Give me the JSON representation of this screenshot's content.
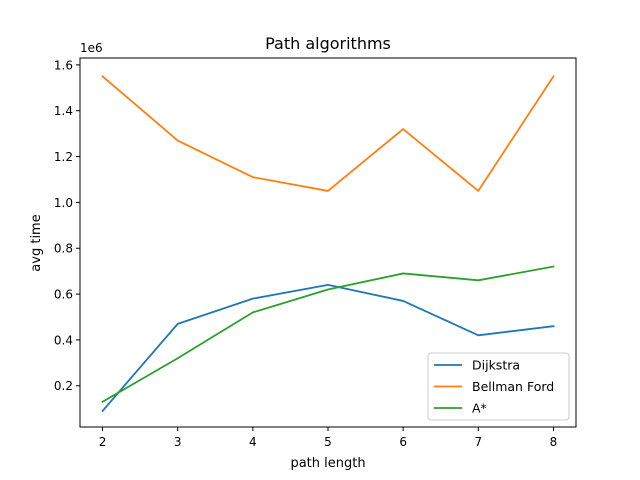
{
  "chart_data": {
    "type": "line",
    "title": "Path algorithms",
    "xlabel": "path length",
    "ylabel": "avg time",
    "y_offset_label": "1e6",
    "x": [
      2,
      3,
      4,
      5,
      6,
      7,
      8
    ],
    "xlim": [
      1.7,
      8.3
    ],
    "ylim": [
      0.02,
      1.63
    ],
    "x_ticks": [
      2,
      3,
      4,
      5,
      6,
      7,
      8
    ],
    "y_ticks": [
      0.2,
      0.4,
      0.6,
      0.8,
      1.0,
      1.2,
      1.4,
      1.6
    ],
    "y_tick_labels": [
      "0.2",
      "0.4",
      "0.6",
      "0.8",
      "1.0",
      "1.2",
      "1.4",
      "1.6"
    ],
    "grid": false,
    "legend_position": "lower-right",
    "series": [
      {
        "name": "Dijkstra",
        "color": "#1f77b4",
        "values": [
          0.09,
          0.47,
          0.58,
          0.64,
          0.57,
          0.42,
          0.46
        ]
      },
      {
        "name": "Bellman Ford",
        "color": "#ff7f0e",
        "values": [
          1.55,
          1.27,
          1.11,
          1.05,
          1.32,
          1.05,
          1.55
        ]
      },
      {
        "name": "A*",
        "color": "#2ca02c",
        "values": [
          0.13,
          0.32,
          0.52,
          0.62,
          0.69,
          0.66,
          0.72
        ]
      }
    ]
  }
}
